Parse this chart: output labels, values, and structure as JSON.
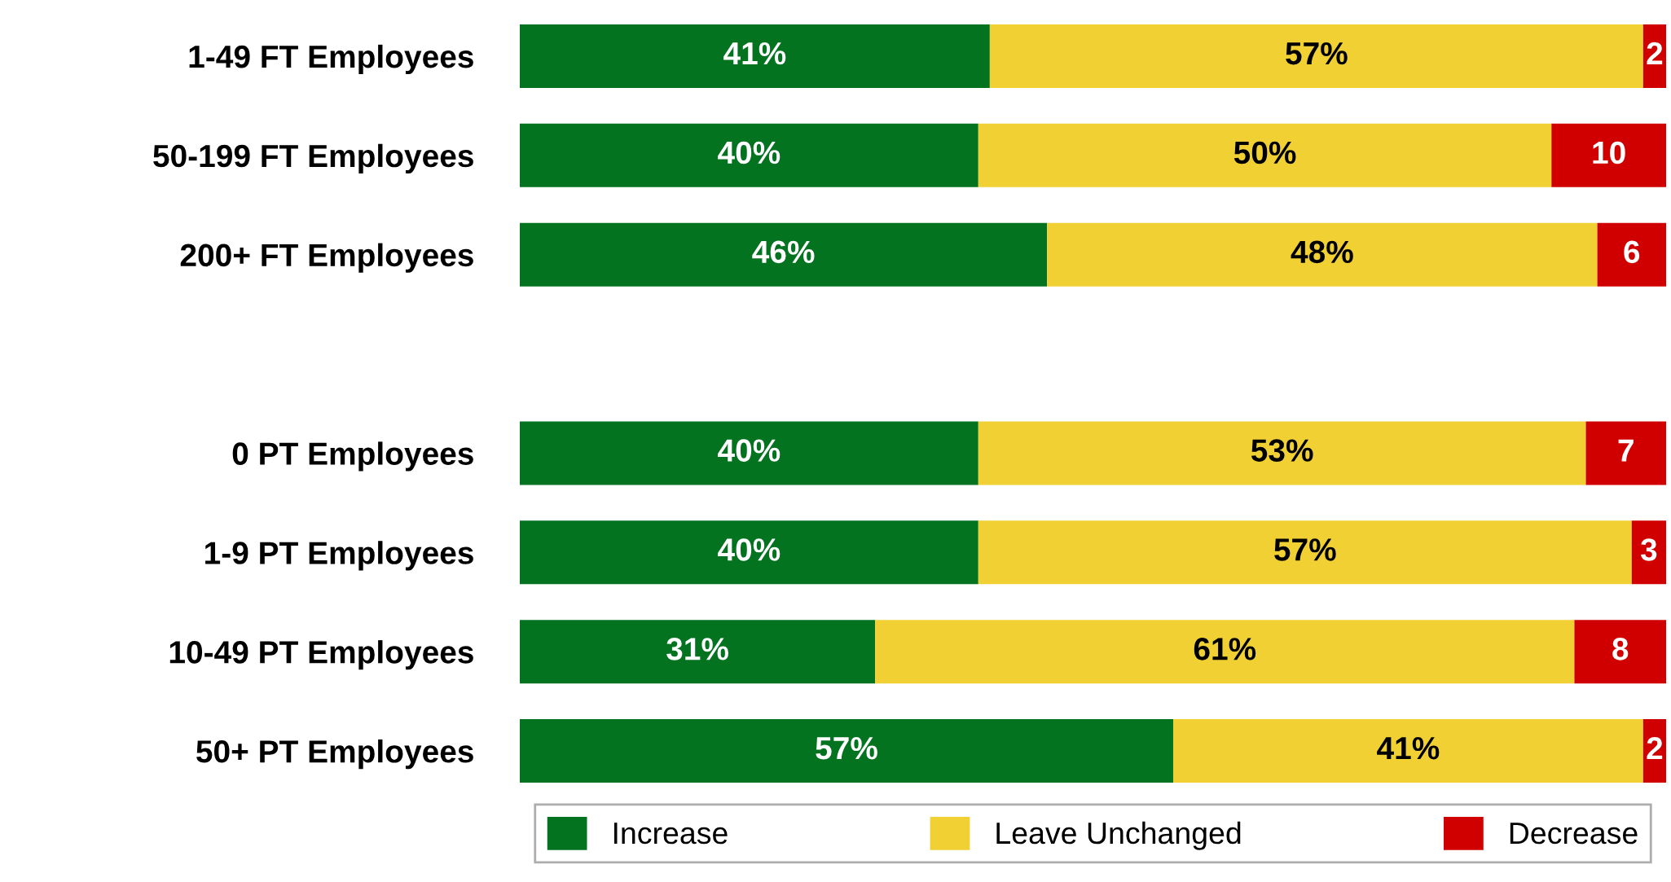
{
  "chart_data": {
    "type": "bar",
    "orientation": "horizontal",
    "stacked": true,
    "legend": "bottom",
    "grid": false,
    "tick_labels": "y",
    "categories": [
      "1-49 FT Employees",
      "50-199 FT Employees",
      "200+ FT Employees",
      null,
      "0 PT Employees",
      "1-9 PT Employees",
      "10-49 PT Employees",
      "50+ PT Employees"
    ],
    "series": [
      {
        "name": "Increase",
        "color": "#037320",
        "values": [
          41,
          40,
          46,
          null,
          40,
          40,
          31,
          57
        ],
        "value_labels": [
          "41%",
          "40%",
          "46%",
          null,
          "40%",
          "40%",
          "31%",
          "57%"
        ]
      },
      {
        "name": "Leave Unchanged",
        "color": "#f0d032",
        "values": [
          57,
          50,
          48,
          null,
          53,
          57,
          61,
          41
        ],
        "value_labels": [
          "57%",
          "50%",
          "48%",
          null,
          "53%",
          "57%",
          "61%",
          "41%"
        ]
      },
      {
        "name": "Decrease",
        "color": "#d10000",
        "values": [
          2,
          10,
          6,
          null,
          7,
          3,
          8,
          2
        ],
        "value_labels": [
          "2",
          "10",
          "6",
          null,
          "7",
          "3",
          "8",
          "2"
        ]
      }
    ]
  }
}
